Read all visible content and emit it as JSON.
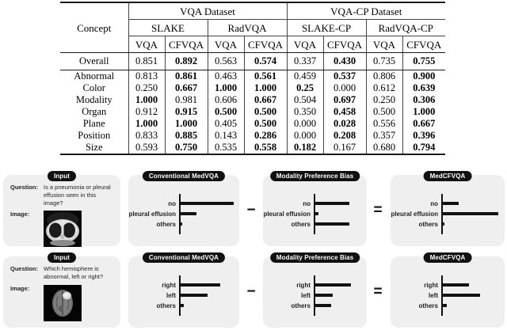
{
  "colors": {
    "panel_bg": "#efefef",
    "badge_bg": "#111111",
    "bar": "#111111",
    "text": "#000000"
  },
  "table": {
    "concept_header": "Concept",
    "group_headers": [
      "VQA Dataset",
      "VQA-CP Dataset"
    ],
    "dataset_headers": [
      "SLAKE",
      "RadVQA",
      "SLAKE-CP",
      "RadVQA-CP"
    ],
    "method_headers": [
      "VQA",
      "CFVQA",
      "VQA",
      "CFVQA",
      "VQA",
      "CFVQA",
      "VQA",
      "CFVQA"
    ],
    "rows": [
      {
        "concept": "Overall",
        "values": [
          "0.851",
          "0.892",
          "0.563",
          "0.574",
          "0.337",
          "0.430",
          "0.735",
          "0.755"
        ],
        "bold": [
          false,
          true,
          false,
          true,
          false,
          true,
          false,
          true
        ]
      },
      {
        "concept": "Abnormal",
        "values": [
          "0.813",
          "0.861",
          "0.463",
          "0.561",
          "0.459",
          "0.537",
          "0.806",
          "0.900"
        ],
        "bold": [
          false,
          true,
          false,
          true,
          false,
          true,
          false,
          true
        ]
      },
      {
        "concept": "Color",
        "values": [
          "0.250",
          "0.667",
          "1.000",
          "1.000",
          "0.25",
          "0.000",
          "0.612",
          "0.639"
        ],
        "bold": [
          false,
          true,
          true,
          true,
          true,
          false,
          false,
          true
        ]
      },
      {
        "concept": "Modality",
        "values": [
          "1.000",
          "0.981",
          "0.606",
          "0.667",
          "0.504",
          "0.697",
          "0.250",
          "0.306"
        ],
        "bold": [
          true,
          false,
          false,
          true,
          false,
          true,
          false,
          true
        ]
      },
      {
        "concept": "Organ",
        "values": [
          "0.912",
          "0.915",
          "0.500",
          "0.500",
          "0.350",
          "0.458",
          "0.500",
          "1.000"
        ],
        "bold": [
          false,
          true,
          true,
          true,
          false,
          true,
          false,
          true
        ]
      },
      {
        "concept": "Plane",
        "values": [
          "1.000",
          "1.000",
          "0.405",
          "0.500",
          "0.000",
          "0.028",
          "0.556",
          "0.667"
        ],
        "bold": [
          true,
          true,
          false,
          true,
          false,
          true,
          false,
          true
        ]
      },
      {
        "concept": "Position",
        "values": [
          "0.833",
          "0.885",
          "0.143",
          "0.286",
          "0.000",
          "0.208",
          "0.357",
          "0.396"
        ],
        "bold": [
          false,
          true,
          false,
          true,
          false,
          true,
          false,
          true
        ]
      },
      {
        "concept": "Size",
        "values": [
          "0.593",
          "0.750",
          "0.535",
          "0.558",
          "0.182",
          "0.167",
          "0.680",
          "0.794"
        ],
        "bold": [
          false,
          true,
          false,
          true,
          true,
          false,
          false,
          true
        ]
      }
    ]
  },
  "figure": {
    "operators": {
      "minus": "−",
      "equals": "="
    },
    "rows": [
      {
        "input": {
          "badge": "Input",
          "question_label": "Question:",
          "question": "Is a pneumonia or pleural effusion seen in this image?",
          "image_label": "Image:",
          "image_description": "chest CT scan"
        },
        "panels": [
          {
            "badge": "Conventional MedVQA",
            "categories": [
              "no",
              "pleural effusion",
              "others"
            ],
            "values": [
              0.96,
              0.29,
              0.03
            ]
          },
          {
            "badge": "Modality Preference Bias",
            "categories": [
              "no",
              "pleural effusion",
              "others"
            ],
            "values": [
              0.61,
              0.05,
              0.61
            ]
          },
          {
            "badge": "MedCFVQA",
            "categories": [
              "no",
              "pleural effusion",
              "others"
            ],
            "values": [
              0.29,
              1.0,
              0.03
            ]
          }
        ]
      },
      {
        "input": {
          "badge": "Input",
          "question_label": "Question:",
          "question": "Which hemisphere is abnormal, left or right?",
          "image_label": "Image:",
          "image_description": "brain MRI scan"
        },
        "panels": [
          {
            "badge": "Conventional MedVQA",
            "categories": [
              "right",
              "left",
              "others"
            ],
            "values": [
              0.71,
              0.49,
              0.05
            ]
          },
          {
            "badge": "Modality Preference Bias",
            "categories": [
              "right",
              "left",
              "others"
            ],
            "values": [
              0.64,
              0.31,
              0.29
            ]
          },
          {
            "badge": "MedCFVQA",
            "categories": [
              "right",
              "left",
              "others"
            ],
            "values": [
              0.47,
              0.67,
              0.07
            ]
          }
        ]
      }
    ]
  }
}
